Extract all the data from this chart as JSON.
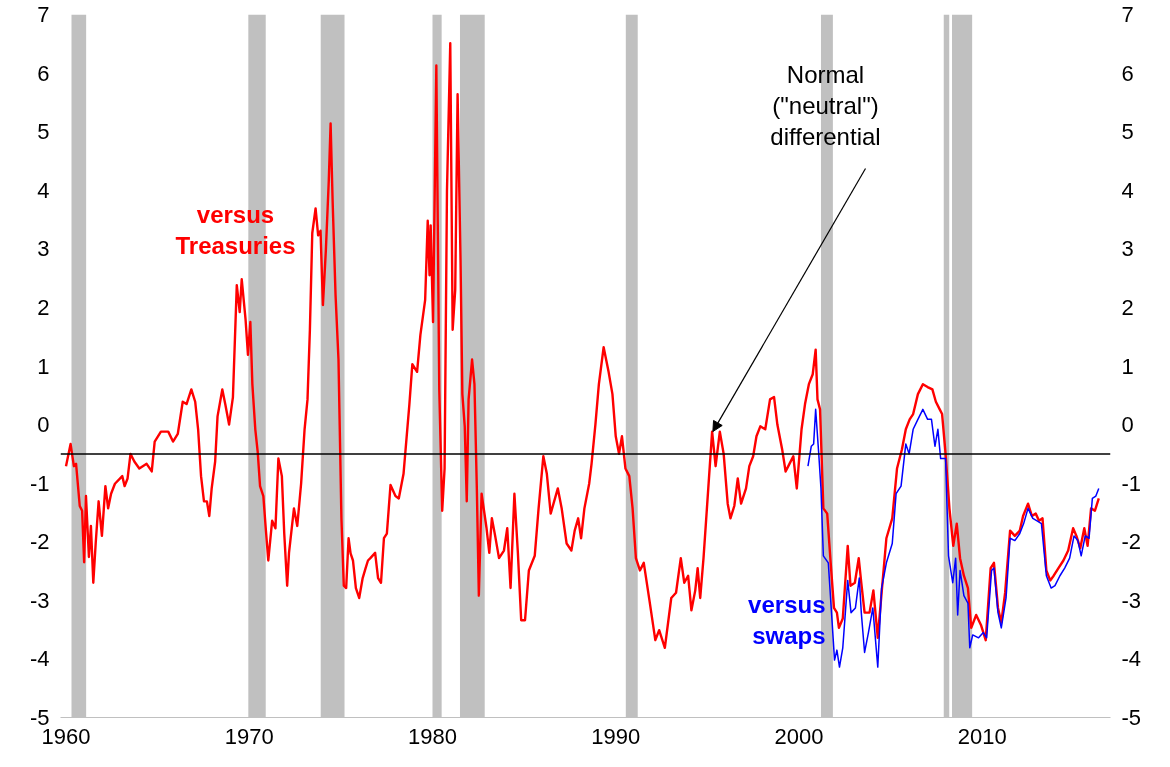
{
  "chart_data": {
    "type": "line",
    "xlim": [
      1959.7,
      2017
    ],
    "xticks": [
      1960,
      1970,
      1980,
      1990,
      2000,
      2010
    ],
    "ylim": [
      -5,
      7
    ],
    "yticks": [
      -5,
      -4,
      -3,
      -2,
      -1,
      0,
      1,
      2,
      3,
      4,
      5,
      6,
      7
    ],
    "y2lim": [
      -5,
      7
    ],
    "y2ticks": [
      -5,
      -4,
      -3,
      -2,
      -1,
      0,
      1,
      2,
      3,
      4,
      5,
      6,
      7
    ],
    "grid": false,
    "line_style": "solid",
    "marker": "none",
    "series": [
      {
        "name": "versus Treasuries",
        "color": "#ff0000",
        "x": [
          1960.0,
          1960.25,
          1960.43,
          1960.55,
          1960.75,
          1960.88,
          1960.99,
          1961.09,
          1961.25,
          1961.36,
          1961.49,
          1961.62,
          1961.78,
          1961.96,
          1962.15,
          1962.3,
          1962.46,
          1962.67,
          1963.07,
          1963.2,
          1963.36,
          1963.52,
          1963.73,
          1964.0,
          1964.4,
          1964.68,
          1964.84,
          1965.18,
          1965.58,
          1965.84,
          1966.1,
          1966.37,
          1966.58,
          1966.84,
          1967.05,
          1967.21,
          1967.37,
          1967.53,
          1967.69,
          1967.82,
          1967.95,
          1968.14,
          1968.27,
          1968.53,
          1968.69,
          1968.9,
          1969.11,
          1969.32,
          1969.48,
          1969.59,
          1969.8,
          1969.93,
          1970.06,
          1970.17,
          1970.33,
          1970.46,
          1970.59,
          1970.77,
          1970.9,
          1971.04,
          1971.25,
          1971.43,
          1971.59,
          1971.78,
          1971.91,
          1972.07,
          1972.17,
          1972.44,
          1972.62,
          1972.83,
          1973.02,
          1973.18,
          1973.31,
          1973.44,
          1973.62,
          1973.76,
          1973.89,
          1974.02,
          1974.18,
          1974.34,
          1974.44,
          1974.55,
          1974.71,
          1974.87,
          1975.03,
          1975.16,
          1975.29,
          1975.42,
          1975.53,
          1975.66,
          1975.82,
          1976.0,
          1976.19,
          1976.35,
          1976.48,
          1976.61,
          1976.87,
          1977.03,
          1977.19,
          1977.35,
          1977.51,
          1977.71,
          1977.98,
          1978.16,
          1978.42,
          1978.74,
          1978.9,
          1979.16,
          1979.34,
          1979.6,
          1979.74,
          1979.84,
          1979.9,
          1980.03,
          1980.21,
          1980.37,
          1980.53,
          1980.66,
          1980.79,
          1980.97,
          1981.1,
          1981.24,
          1981.37,
          1981.53,
          1981.63,
          1981.76,
          1981.87,
          1981.97,
          1982.16,
          1982.29,
          1982.42,
          1982.53,
          1982.68,
          1982.95,
          1983.1,
          1983.24,
          1983.42,
          1983.63,
          1983.9,
          1984.08,
          1984.26,
          1984.47,
          1984.66,
          1984.84,
          1985.05,
          1985.26,
          1985.58,
          1985.79,
          1986.05,
          1986.24,
          1986.45,
          1986.84,
          1987.05,
          1987.32,
          1987.58,
          1987.76,
          1987.95,
          1988.11,
          1988.29,
          1988.55,
          1988.68,
          1988.89,
          1989.08,
          1989.34,
          1989.61,
          1989.82,
          1990.0,
          1990.18,
          1990.34,
          1990.53,
          1990.74,
          1990.92,
          1991.1,
          1991.32,
          1991.53,
          1991.84,
          1992.16,
          1992.37,
          1992.68,
          1993.03,
          1993.29,
          1993.55,
          1993.74,
          1993.95,
          1994.13,
          1994.34,
          1994.47,
          1994.61,
          1994.79,
          1995.05,
          1995.26,
          1995.45,
          1995.68,
          1995.89,
          1996.11,
          1996.26,
          1996.47,
          1996.66,
          1996.84,
          1997.11,
          1997.29,
          1997.5,
          1997.68,
          1997.89,
          1998.16,
          1998.42,
          1998.64,
          1998.82,
          1999.08,
          1999.27,
          1999.48,
          1999.69,
          1999.88,
          2000.14,
          2000.33,
          2000.54,
          2000.75,
          2000.91,
          2001.01,
          2001.15,
          2001.33,
          2001.54,
          2001.73,
          2001.91,
          2002.07,
          2002.18,
          2002.39,
          2002.66,
          2002.81,
          2003.05,
          2003.26,
          2003.4,
          2003.58,
          2003.85,
          2004.06,
          2004.3,
          2004.51,
          2004.77,
          2005.09,
          2005.35,
          2005.62,
          2005.83,
          2006.04,
          2006.23,
          2006.49,
          2006.76,
          2007.02,
          2007.28,
          2007.47,
          2007.68,
          2007.81,
          2008.0,
          2008.21,
          2008.42,
          2008.61,
          2008.79,
          2009.0,
          2009.22,
          2009.4,
          2009.67,
          2009.93,
          2010.19,
          2010.46,
          2010.64,
          2010.86,
          2011.04,
          2011.25,
          2011.52,
          2011.78,
          2012.05,
          2012.23,
          2012.5,
          2012.71,
          2012.92,
          2013.1,
          2013.29,
          2013.5,
          2013.71,
          2013.9,
          2014.16,
          2014.43,
          2014.69,
          2014.96,
          2015.14,
          2015.35,
          2015.57,
          2015.75,
          2015.94,
          2016.15,
          2016.36
        ],
        "values": [
          -0.71,
          -0.33,
          -0.71,
          -0.67,
          -1.39,
          -1.47,
          -2.35,
          -1.22,
          -2.26,
          -1.73,
          -2.7,
          -2.03,
          -1.31,
          -1.9,
          -1.05,
          -1.43,
          -1.18,
          -1.01,
          -0.88,
          -1.05,
          -0.92,
          -0.5,
          -0.63,
          -0.75,
          -0.67,
          -0.8,
          -0.29,
          -0.12,
          -0.12,
          -0.29,
          -0.16,
          0.39,
          0.35,
          0.6,
          0.39,
          -0.08,
          -0.88,
          -1.31,
          -1.31,
          -1.56,
          -1.09,
          -0.63,
          0.14,
          0.6,
          0.35,
          0.0,
          0.47,
          2.38,
          1.92,
          2.48,
          1.79,
          1.19,
          1.75,
          0.69,
          -0.08,
          -0.46,
          -1.05,
          -1.22,
          -1.77,
          -2.32,
          -1.64,
          -1.77,
          -0.58,
          -0.88,
          -1.86,
          -2.75,
          -2.19,
          -1.43,
          -1.73,
          -1.01,
          -0.08,
          0.43,
          1.62,
          3.27,
          3.69,
          3.23,
          3.31,
          2.04,
          2.97,
          4.16,
          5.14,
          3.82,
          2.21,
          1.11,
          -1.6,
          -2.75,
          -2.79,
          -1.94,
          -2.2,
          -2.32,
          -2.79,
          -2.96,
          -2.62,
          -2.45,
          -2.32,
          -2.28,
          -2.19,
          -2.62,
          -2.7,
          -1.94,
          -1.86,
          -1.03,
          -1.22,
          -1.26,
          -0.84,
          0.35,
          1.03,
          0.9,
          1.53,
          2.13,
          3.48,
          2.55,
          3.4,
          1.75,
          6.13,
          0.6,
          -1.47,
          -0.75,
          3.99,
          6.51,
          1.62,
          2.3,
          5.64,
          2.81,
          0.52,
          -0.03,
          -1.31,
          0.43,
          1.11,
          0.69,
          -1.09,
          -2.92,
          -1.18,
          -1.77,
          -2.19,
          -1.6,
          -1.9,
          -2.28,
          -2.15,
          -1.77,
          -2.79,
          -1.18,
          -2.19,
          -3.34,
          -3.34,
          -2.49,
          -2.24,
          -1.43,
          -0.54,
          -0.84,
          -1.52,
          -1.09,
          -1.43,
          -2.03,
          -2.15,
          -1.81,
          -1.6,
          -1.94,
          -1.43,
          -1.01,
          -0.67,
          0.0,
          0.69,
          1.32,
          0.9,
          0.52,
          -0.2,
          -0.5,
          -0.2,
          -0.75,
          -0.88,
          -1.43,
          -2.28,
          -2.49,
          -2.36,
          -3.0,
          -3.68,
          -3.51,
          -3.81,
          -2.96,
          -2.87,
          -2.28,
          -2.7,
          -2.58,
          -3.17,
          -2.83,
          -2.45,
          -2.96,
          -2.28,
          -1.09,
          -0.12,
          -0.71,
          -0.12,
          -0.5,
          -1.35,
          -1.6,
          -1.39,
          -0.92,
          -1.35,
          -1.09,
          -0.71,
          -0.54,
          -0.2,
          -0.03,
          -0.08,
          0.43,
          0.47,
          0.0,
          -0.42,
          -0.8,
          -0.67,
          -0.54,
          -1.09,
          -0.08,
          0.35,
          0.69,
          0.86,
          1.28,
          0.43,
          0.26,
          -1.43,
          -1.52,
          -2.36,
          -3.13,
          -3.21,
          -3.47,
          -3.31,
          -2.07,
          -2.75,
          -2.7,
          -2.28,
          -2.7,
          -3.21,
          -3.21,
          -2.83,
          -3.64,
          -2.87,
          -1.94,
          -1.6,
          -0.75,
          -0.42,
          -0.08,
          0.09,
          0.18,
          0.52,
          0.69,
          0.64,
          0.6,
          0.39,
          0.26,
          0.18,
          -0.5,
          -1.43,
          -2.07,
          -1.69,
          -2.28,
          -2.58,
          -2.79,
          -3.47,
          -3.25,
          -3.42,
          -3.68,
          -2.45,
          -2.36,
          -3.13,
          -3.38,
          -2.87,
          -1.81,
          -1.9,
          -1.81,
          -1.56,
          -1.35,
          -1.56,
          -1.52,
          -1.64,
          -1.6,
          -2.49,
          -2.66,
          -2.58,
          -2.45,
          -2.32,
          -2.15,
          -1.77,
          -1.9,
          -2.11,
          -1.77,
          -2.07,
          -1.43,
          -1.47,
          -1.26
        ]
      },
      {
        "name": "versus swaps",
        "color": "#0000ff",
        "x": [
          2000.49,
          2000.67,
          2000.8,
          2000.91,
          2001.07,
          2001.2,
          2001.33,
          2001.6,
          2001.81,
          2001.94,
          2002.07,
          2002.21,
          2002.39,
          2002.66,
          2002.84,
          2003.08,
          2003.29,
          2003.4,
          2003.58,
          2003.79,
          2004.03,
          2004.3,
          2004.51,
          2004.77,
          2005.09,
          2005.3,
          2005.57,
          2005.83,
          2006.01,
          2006.23,
          2006.49,
          2006.76,
          2007.02,
          2007.23,
          2007.42,
          2007.58,
          2007.73,
          2008.0,
          2008.16,
          2008.39,
          2008.55,
          2008.66,
          2008.79,
          2009.0,
          2009.22,
          2009.32,
          2009.48,
          2009.8,
          2010.06,
          2010.24,
          2010.51,
          2010.64,
          2010.86,
          2011.04,
          2011.3,
          2011.52,
          2011.78,
          2012.05,
          2012.26,
          2012.5,
          2012.76,
          2012.97,
          2013.23,
          2013.5,
          2013.76,
          2013.97,
          2014.24,
          2014.5,
          2014.77,
          2015.01,
          2015.22,
          2015.4,
          2015.62,
          2015.83,
          2016.01,
          2016.2,
          2016.36
        ],
        "values": [
          -0.71,
          -0.37,
          -0.33,
          0.26,
          -0.46,
          -1.09,
          -2.24,
          -2.36,
          -3.38,
          -4.02,
          -3.85,
          -4.14,
          -3.81,
          -2.66,
          -3.21,
          -3.13,
          -2.62,
          -3.21,
          -3.89,
          -3.55,
          -3.13,
          -4.14,
          -2.79,
          -2.36,
          -2.03,
          -1.18,
          -1.05,
          -0.33,
          -0.5,
          -0.08,
          0.09,
          0.26,
          0.09,
          0.09,
          -0.37,
          -0.08,
          -0.58,
          -0.58,
          -2.24,
          -2.7,
          -2.28,
          -3.25,
          -2.49,
          -2.92,
          -3.05,
          -3.81,
          -3.59,
          -3.64,
          -3.55,
          -3.64,
          -2.49,
          -2.45,
          -3.21,
          -3.47,
          -2.96,
          -1.94,
          -1.98,
          -1.86,
          -1.69,
          -1.43,
          -1.6,
          -1.64,
          -1.69,
          -2.58,
          -2.79,
          -2.75,
          -2.58,
          -2.45,
          -2.28,
          -1.9,
          -1.98,
          -2.24,
          -1.9,
          -1.94,
          -1.26,
          -1.22,
          -1.09
        ]
      }
    ],
    "ref_lines": [
      {
        "axis": "y",
        "value": -0.5,
        "color": "#000000",
        "line_style": "solid"
      }
    ],
    "bands": [
      {
        "axis": "x",
        "from": 1960.3,
        "to": 1961.1,
        "color": "#c0c0c0"
      },
      {
        "axis": "x",
        "from": 1969.95,
        "to": 1970.9,
        "color": "#c0c0c0"
      },
      {
        "axis": "x",
        "from": 1973.9,
        "to": 1975.2,
        "color": "#c0c0c0"
      },
      {
        "axis": "x",
        "from": 1980.0,
        "to": 1980.5,
        "color": "#c0c0c0"
      },
      {
        "axis": "x",
        "from": 1981.5,
        "to": 1982.85,
        "color": "#c0c0c0"
      },
      {
        "axis": "x",
        "from": 1990.55,
        "to": 1991.2,
        "color": "#c0c0c0"
      },
      {
        "axis": "x",
        "from": 2001.2,
        "to": 2001.85,
        "color": "#c0c0c0"
      },
      {
        "axis": "x",
        "from": 2007.9,
        "to": 2008.2,
        "color": "#c0c0c0"
      },
      {
        "axis": "x",
        "from": 2008.35,
        "to": 2009.45,
        "color": "#c0c0c0"
      }
    ],
    "annotations": [
      {
        "text": "Normal\n(\"neutral\")\ndifferential",
        "x": 1995.3,
        "y": -0.12
      }
    ]
  }
}
